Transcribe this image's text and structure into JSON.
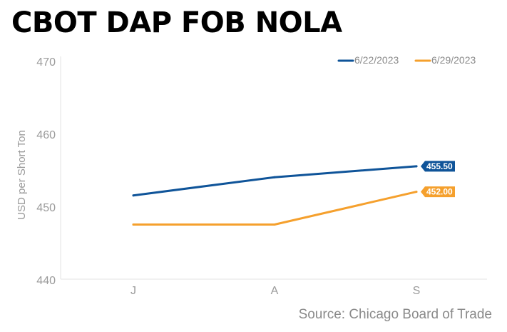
{
  "chart_data": {
    "type": "line",
    "title": "CBOT DAP FOB NOLA",
    "ylabel": "USD per Short Ton",
    "xlabel": "",
    "categories": [
      "J",
      "A",
      "S"
    ],
    "ylim": [
      440,
      470
    ],
    "yticks": [
      440,
      450,
      460,
      470
    ],
    "grid": false,
    "legend": "top-right",
    "series": [
      {
        "name": "6/22/2023",
        "color": "#0f5499",
        "values": [
          451.5,
          454.0,
          455.5
        ],
        "last_label": "455.50"
      },
      {
        "name": "6/29/2023",
        "color": "#f5a02d",
        "values": [
          447.5,
          447.5,
          452.0
        ],
        "last_label": "452.00"
      }
    ],
    "source": "Source: Chicago Board of Trade"
  }
}
